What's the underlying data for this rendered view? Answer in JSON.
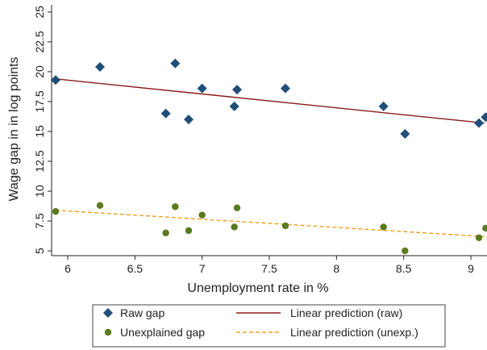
{
  "chart_data": {
    "type": "scatter",
    "xlabel": "Unemployment rate in %",
    "ylabel": "Wage gap in in log points",
    "xlim": [
      5.88,
      9.12
    ],
    "ylim": [
      4.6,
      25.6
    ],
    "xticks": [
      "6",
      "6.5",
      "7",
      "7.5",
      "8",
      "8.5",
      "9"
    ],
    "yticks": [
      "5",
      "7.5",
      "10",
      "12.5",
      "15",
      "17.5",
      "20",
      "22.5",
      "25"
    ],
    "grid": false,
    "legend": "bottom",
    "series": [
      {
        "name": "Raw gap",
        "marker": "diamond",
        "color": "#1f4e79",
        "points": [
          [
            5.91,
            19.3
          ],
          [
            6.24,
            20.4
          ],
          [
            6.73,
            16.5
          ],
          [
            6.8,
            20.7
          ],
          [
            6.9,
            16.0
          ],
          [
            7.0,
            18.6
          ],
          [
            7.24,
            17.1
          ],
          [
            7.26,
            18.5
          ],
          [
            7.62,
            18.6
          ],
          [
            8.35,
            17.1
          ],
          [
            8.51,
            14.8
          ],
          [
            9.06,
            15.7
          ],
          [
            9.11,
            16.2
          ]
        ]
      },
      {
        "name": "Unexplained gap",
        "marker": "circle",
        "color": "#5a7a1e",
        "points": [
          [
            5.91,
            8.3
          ],
          [
            6.24,
            8.8
          ],
          [
            6.73,
            6.5
          ],
          [
            6.8,
            8.7
          ],
          [
            6.9,
            6.7
          ],
          [
            7.0,
            8.0
          ],
          [
            7.24,
            7.0
          ],
          [
            7.26,
            8.6
          ],
          [
            7.62,
            7.1
          ],
          [
            8.35,
            7.0
          ],
          [
            8.51,
            5.0
          ],
          [
            9.06,
            6.1
          ],
          [
            9.11,
            6.9
          ]
        ]
      }
    ],
    "fits": [
      {
        "name": "Linear prediction (raw)",
        "style": "solid",
        "color": "#8b1a1a",
        "from": [
          5.91,
          19.4
        ],
        "to": [
          9.1,
          15.7
        ]
      },
      {
        "name": "Linear prediction (unexp.)",
        "style": "dashed",
        "color": "#f0a020",
        "from": [
          5.91,
          8.4
        ],
        "to": [
          9.1,
          6.2
        ]
      }
    ]
  }
}
